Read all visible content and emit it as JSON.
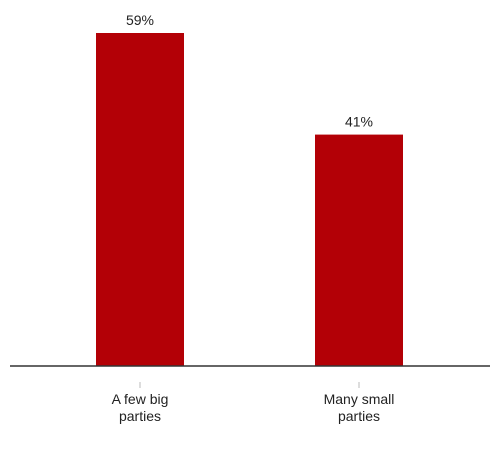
{
  "chart_data": {
    "type": "bar",
    "categories": [
      "A few big parties",
      "Many small parties"
    ],
    "category_lines": [
      [
        "A few big",
        "parties"
      ],
      [
        "Many small",
        "parties"
      ]
    ],
    "values": [
      59,
      41
    ],
    "value_labels": [
      "59%",
      "41%"
    ],
    "ylim": [
      0,
      60
    ],
    "grid": false,
    "legend": "none",
    "colors": {
      "bar": "#b30006",
      "axis": "#333333",
      "tick": "#bbbbbb",
      "text": "#222222"
    }
  }
}
